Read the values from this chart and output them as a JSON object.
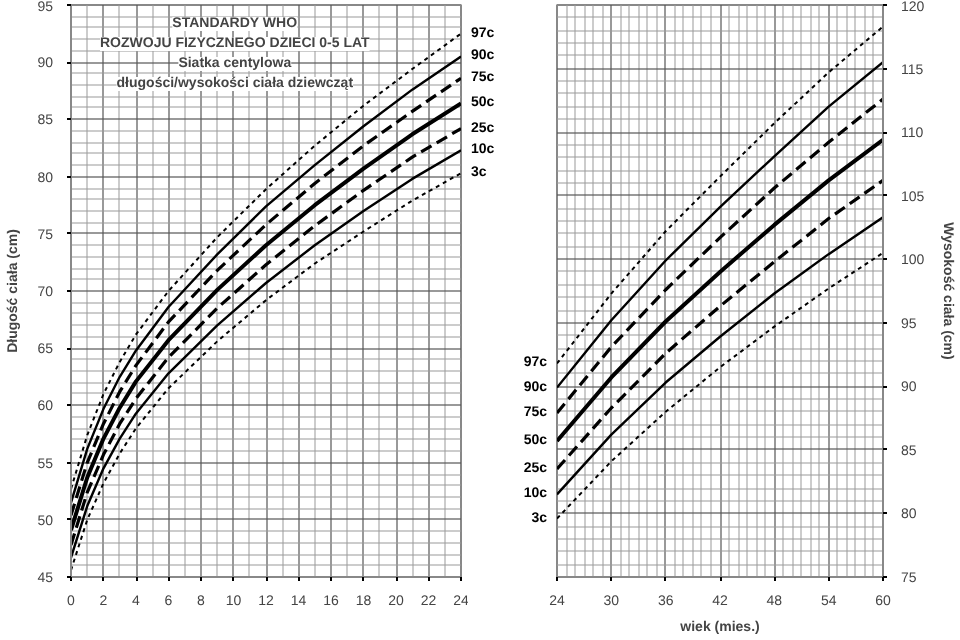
{
  "chart_data": [
    {
      "type": "line",
      "title": "STANDARDY WHO\nROZWOJU FIZYCZNEGO DZIECI 0-5 LAT",
      "subtitle": "Siatka centylowa\ndługości/wysokości ciała dziewcząt",
      "ylabel": "Długość ciała (cm)",
      "x": [
        0,
        1,
        2,
        3,
        4,
        6,
        9,
        12,
        15,
        18,
        21,
        24
      ],
      "xlim": [
        0,
        24
      ],
      "xticks": [
        0,
        2,
        4,
        6,
        8,
        10,
        12,
        14,
        16,
        18,
        20,
        22,
        24
      ],
      "ylim": [
        45,
        95
      ],
      "yticks": [
        45,
        50,
        55,
        60,
        65,
        70,
        75,
        80,
        85,
        90,
        95
      ],
      "grid": true,
      "legend": false,
      "series": [
        {
          "name": "97c",
          "color": "#000000",
          "line_style": "dotted",
          "values": [
            52.7,
            57.4,
            61.0,
            63.8,
            66.2,
            70.0,
            74.7,
            78.9,
            82.7,
            86.2,
            89.4,
            92.5
          ]
        },
        {
          "name": "90c",
          "color": "#000000",
          "line_style": "solid",
          "values": [
            51.5,
            56.2,
            59.7,
            62.5,
            64.8,
            68.6,
            73.2,
            77.4,
            81.0,
            84.4,
            87.6,
            90.5
          ]
        },
        {
          "name": "75c",
          "color": "#000000",
          "line_style": "dashed",
          "values": [
            50.4,
            55.0,
            58.4,
            61.2,
            63.5,
            67.3,
            71.8,
            75.8,
            79.4,
            82.7,
            85.7,
            88.6
          ]
        },
        {
          "name": "50c",
          "color": "#000000",
          "line_style": "solid",
          "values": [
            49.1,
            53.7,
            57.1,
            59.8,
            62.1,
            65.7,
            70.1,
            74.0,
            77.5,
            80.7,
            83.7,
            86.4
          ]
        },
        {
          "name": "25c",
          "color": "#000000",
          "line_style": "dashed",
          "values": [
            47.8,
            52.4,
            55.7,
            58.4,
            60.6,
            64.2,
            68.5,
            72.3,
            75.7,
            78.8,
            81.7,
            84.2
          ]
        },
        {
          "name": "10c",
          "color": "#000000",
          "line_style": "solid",
          "values": [
            46.7,
            51.2,
            54.5,
            57.1,
            59.3,
            62.8,
            67.0,
            70.7,
            74.0,
            77.0,
            79.8,
            82.3
          ]
        },
        {
          "name": "3c",
          "color": "#000000",
          "line_style": "dotted",
          "values": [
            45.6,
            50.0,
            53.2,
            55.8,
            58.0,
            61.5,
            65.6,
            69.2,
            72.4,
            75.2,
            77.9,
            80.3
          ]
        }
      ]
    },
    {
      "type": "line",
      "xlabel": "wiek (mies.)",
      "y2label": "Wysokość ciała (cm)",
      "x": [
        24,
        30,
        36,
        42,
        48,
        54,
        60
      ],
      "xlim": [
        24,
        60
      ],
      "xticks": [
        24,
        30,
        36,
        42,
        48,
        54,
        60
      ],
      "y2lim": [
        75,
        120
      ],
      "y2ticks": [
        75,
        80,
        85,
        90,
        95,
        100,
        105,
        110,
        115,
        120
      ],
      "grid": true,
      "legend": false,
      "series": [
        {
          "name": "97c",
          "color": "#000000",
          "line_style": "dotted",
          "axis": "y2",
          "values": [
            91.8,
            97.3,
            102.2,
            106.5,
            110.7,
            114.7,
            118.3
          ]
        },
        {
          "name": "90c",
          "color": "#000000",
          "line_style": "solid",
          "axis": "y2",
          "values": [
            89.9,
            95.2,
            99.9,
            104.1,
            108.1,
            112.0,
            115.5
          ]
        },
        {
          "name": "75c",
          "color": "#000000",
          "line_style": "dashed",
          "axis": "y2",
          "values": [
            87.9,
            93.1,
            97.6,
            101.7,
            105.6,
            109.2,
            112.6
          ]
        },
        {
          "name": "50c",
          "color": "#000000",
          "line_style": "solid",
          "axis": "y2",
          "values": [
            85.7,
            90.7,
            95.1,
            99.0,
            102.7,
            106.2,
            109.4
          ]
        },
        {
          "name": "25c",
          "color": "#000000",
          "line_style": "dashed",
          "axis": "y2",
          "values": [
            83.5,
            88.3,
            92.6,
            96.3,
            99.8,
            103.2,
            106.2
          ]
        },
        {
          "name": "10c",
          "color": "#000000",
          "line_style": "solid",
          "axis": "y2",
          "values": [
            81.5,
            86.2,
            90.3,
            93.9,
            97.3,
            100.4,
            103.3
          ]
        },
        {
          "name": "3c",
          "color": "#000000",
          "line_style": "dotted",
          "axis": "y2",
          "values": [
            79.6,
            84.1,
            88.0,
            91.5,
            94.7,
            97.7,
            100.5
          ]
        }
      ]
    }
  ]
}
